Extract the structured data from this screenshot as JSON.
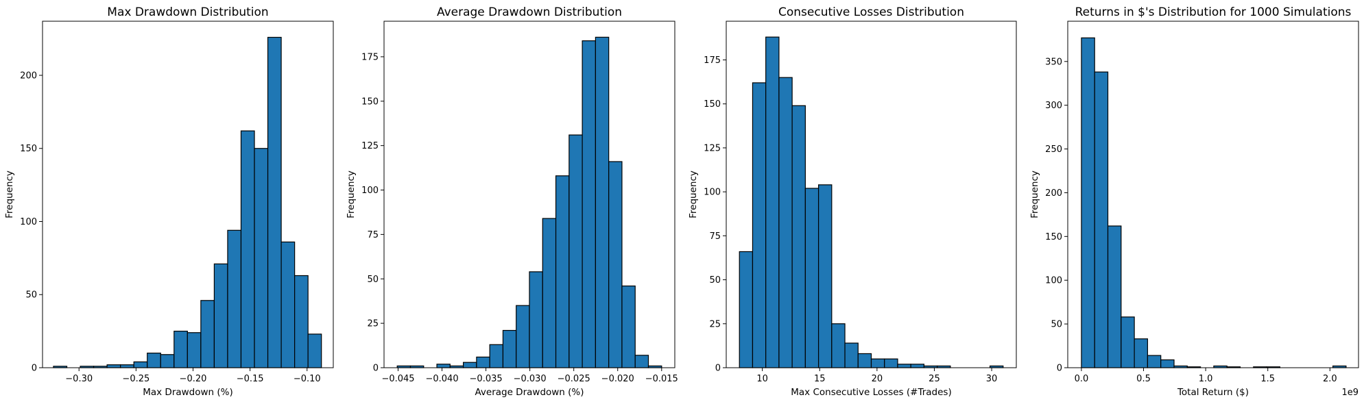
{
  "chart_data": [
    {
      "type": "bar",
      "title": "Max Drawdown Distribution",
      "xlabel": "Max Drawdown (%)",
      "ylabel": "Frequency",
      "xlim": [
        -0.332,
        -0.077
      ],
      "ylim": [
        0,
        237
      ],
      "xticks": [
        -0.3,
        -0.25,
        -0.2,
        -0.15,
        -0.1
      ],
      "xtick_labels": [
        "−0.30",
        "−0.25",
        "−0.20",
        "−0.15",
        "−0.10"
      ],
      "yticks": [
        0,
        50,
        100,
        150,
        200
      ],
      "ytick_labels": [
        "0",
        "50",
        "100",
        "150",
        "200"
      ],
      "bin_start": -0.3224,
      "bin_width": 0.01175,
      "values": [
        1,
        0,
        1,
        1,
        2,
        2,
        4,
        10,
        9,
        25,
        24,
        46,
        71,
        94,
        162,
        150,
        226,
        86,
        63,
        23
      ],
      "bar_color": "#1f77b4",
      "edge_color": "#000000",
      "multiplier": ""
    },
    {
      "type": "bar",
      "title": "Average Drawdown Distribution",
      "xlabel": "Average Drawdown (%)",
      "ylabel": "Frequency",
      "xlim": [
        -0.0466,
        -0.0135
      ],
      "ylim": [
        0,
        195
      ],
      "xticks": [
        -0.045,
        -0.04,
        -0.035,
        -0.03,
        -0.025,
        -0.02,
        -0.015
      ],
      "xtick_labels": [
        "−0.045",
        "−0.040",
        "−0.035",
        "−0.030",
        "−0.025",
        "−0.020",
        "−0.015"
      ],
      "yticks": [
        0,
        25,
        50,
        75,
        100,
        125,
        150,
        175
      ],
      "ytick_labels": [
        "0",
        "25",
        "50",
        "75",
        "100",
        "125",
        "150",
        "175"
      ],
      "bin_start": -0.0451,
      "bin_width": 0.001505,
      "values": [
        1,
        1,
        0,
        2,
        1,
        3,
        6,
        13,
        21,
        35,
        54,
        84,
        108,
        131,
        184,
        186,
        116,
        46,
        7,
        1
      ],
      "bar_color": "#1f77b4",
      "edge_color": "#000000",
      "multiplier": ""
    },
    {
      "type": "bar",
      "title": "Consecutive Losses Distribution",
      "xlabel": "Max Consecutive Losses (#Trades)",
      "ylabel": "Frequency",
      "xlim": [
        6.85,
        32.15
      ],
      "ylim": [
        0,
        197
      ],
      "xticks": [
        10,
        15,
        20,
        25,
        30
      ],
      "xtick_labels": [
        "10",
        "15",
        "20",
        "25",
        "30"
      ],
      "yticks": [
        0,
        25,
        50,
        75,
        100,
        125,
        150,
        175
      ],
      "ytick_labels": [
        "0",
        "25",
        "50",
        "75",
        "100",
        "125",
        "150",
        "175"
      ],
      "bin_start": 8.0,
      "bin_width": 1.15,
      "values": [
        66,
        162,
        188,
        165,
        149,
        102,
        104,
        25,
        14,
        8,
        5,
        5,
        2,
        2,
        1,
        1,
        0,
        0,
        0,
        1
      ],
      "bar_color": "#1f77b4",
      "edge_color": "#000000",
      "multiplier": ""
    },
    {
      "type": "bar",
      "title": "Returns in $'s Distribution for 1000 Simulations",
      "xlabel": "Total Return ($)",
      "ylabel": "Frequency",
      "xlim": [
        -0.11,
        2.23
      ],
      "ylim": [
        0,
        396
      ],
      "xticks": [
        0.0,
        0.5,
        1.0,
        1.5,
        2.0
      ],
      "xtick_labels": [
        "0.0",
        "0.5",
        "1.0",
        "1.5",
        "2.0"
      ],
      "yticks": [
        0,
        50,
        100,
        150,
        200,
        250,
        300,
        350
      ],
      "ytick_labels": [
        "0",
        "50",
        "100",
        "150",
        "200",
        "250",
        "300",
        "350"
      ],
      "bin_start": 0.0,
      "bin_width": 0.1065,
      "values": [
        377,
        338,
        162,
        58,
        33,
        14,
        9,
        2,
        1,
        0,
        2,
        1,
        0,
        1,
        1,
        0,
        0,
        0,
        0,
        2
      ],
      "bar_color": "#1f77b4",
      "edge_color": "#000000",
      "multiplier": "1e9"
    }
  ]
}
